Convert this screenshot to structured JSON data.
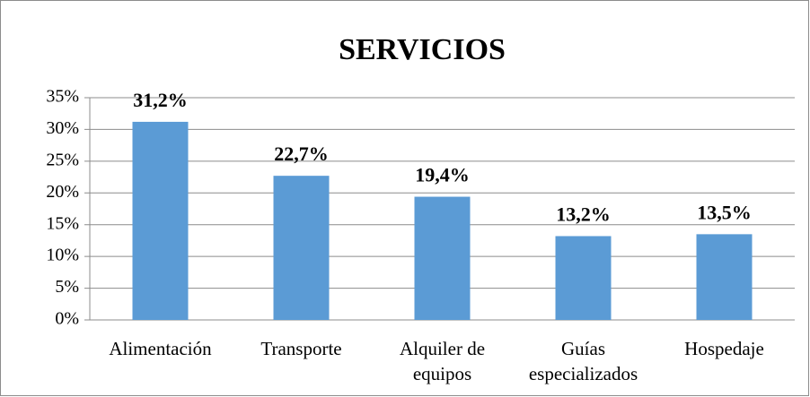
{
  "chart_data": {
    "type": "bar",
    "title": "SERVICIOS",
    "categories": [
      "Alimentación",
      "Transporte",
      "Alquiler de\nequipos",
      "Guías\nespecializados",
      "Hospedaje"
    ],
    "values": [
      31.2,
      22.7,
      19.4,
      13.2,
      13.5
    ],
    "value_labels": [
      "31,2%",
      "22,7%",
      "19,4%",
      "13,2%",
      "13,5%"
    ],
    "color": "#5b9bd5",
    "ylim": [
      0,
      35
    ],
    "yticks": [
      {
        "value": 0,
        "label": "0%"
      },
      {
        "value": 5,
        "label": "5%"
      },
      {
        "value": 10,
        "label": "10%"
      },
      {
        "value": 15,
        "label": "15%"
      },
      {
        "value": 20,
        "label": "20%"
      },
      {
        "value": 25,
        "label": "25%"
      },
      {
        "value": 30,
        "label": "30%"
      },
      {
        "value": 35,
        "label": "35%"
      }
    ],
    "grid": true
  }
}
